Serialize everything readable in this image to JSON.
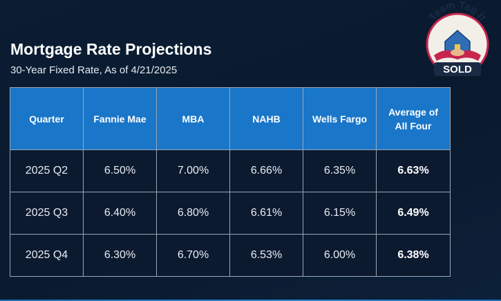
{
  "header": {
    "title": "Mortgage Rate Projections",
    "subtitle": "30-Year Fixed Rate, As of 4/21/2025"
  },
  "logo": {
    "arc_text": "Team Tag It",
    "badge_text": "SOLD",
    "icon": "house-handshake-logo"
  },
  "colors": {
    "header_bg": "#1976c8",
    "cell_bg": "#0c1a30",
    "page_bg": "#0b1d33"
  },
  "chart_data": {
    "type": "table",
    "columns": [
      "Quarter",
      "Fannie Mae",
      "MBA",
      "NAHB",
      "Wells Fargo",
      "Average of All Four"
    ],
    "rows": [
      [
        "2025 Q2",
        "6.50%",
        "7.00%",
        "6.66%",
        "6.35%",
        "6.63%"
      ],
      [
        "2025 Q3",
        "6.40%",
        "6.80%",
        "6.61%",
        "6.15%",
        "6.49%"
      ],
      [
        "2025 Q4",
        "6.30%",
        "6.70%",
        "6.53%",
        "6.00%",
        "6.38%"
      ]
    ]
  }
}
